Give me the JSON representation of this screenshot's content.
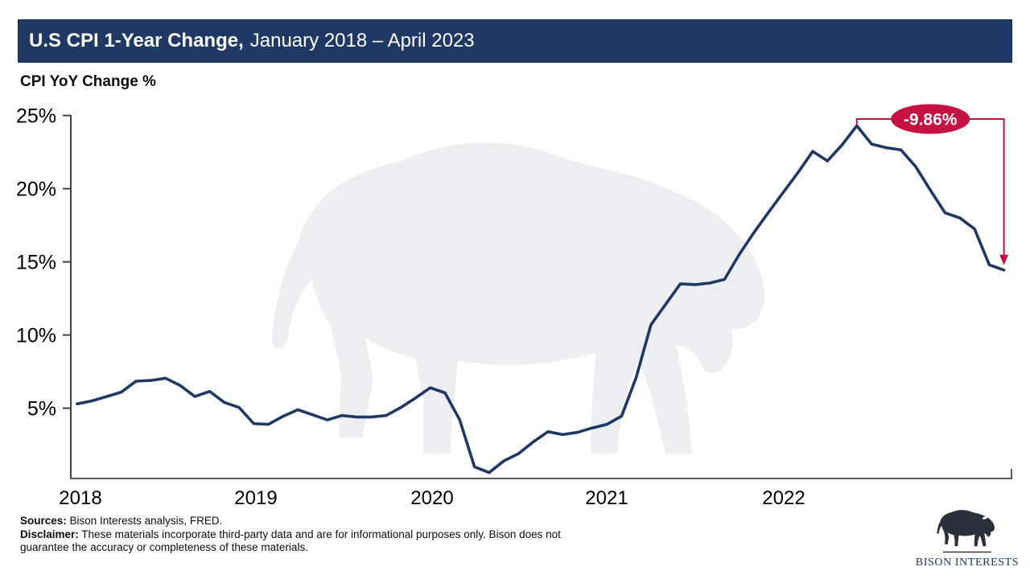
{
  "header": {
    "title_bold": "U.S CPI 1-Year Change,",
    "title_rest": "January 2018 – April 2023",
    "axis_title": "CPI YoY Change %"
  },
  "chart_data": {
    "type": "line",
    "title": "U.S CPI 1-Year Change, January 2018 – April 2023",
    "ylabel": "CPI YoY Change %",
    "xlabel": "",
    "grid": false,
    "legend": "none",
    "ylim": [
      0.2,
      25.2
    ],
    "y_tick_labels": [
      "25%",
      "20%",
      "15%",
      "10%",
      "5%"
    ],
    "y_tick_values": [
      25,
      20,
      15,
      10,
      5
    ],
    "x_tick_labels": [
      "2018",
      "2019",
      "2020",
      "2021",
      "2022"
    ],
    "x": [
      "2018-01",
      "2018-02",
      "2018-03",
      "2018-04",
      "2018-05",
      "2018-06",
      "2018-07",
      "2018-08",
      "2018-09",
      "2018-10",
      "2018-11",
      "2018-12",
      "2019-01",
      "2019-02",
      "2019-03",
      "2019-04",
      "2019-05",
      "2019-06",
      "2019-07",
      "2019-08",
      "2019-09",
      "2019-10",
      "2019-11",
      "2019-12",
      "2020-01",
      "2020-02",
      "2020-03",
      "2020-04",
      "2020-05",
      "2020-06",
      "2020-07",
      "2020-08",
      "2020-09",
      "2020-10",
      "2020-11",
      "2020-12",
      "2021-01",
      "2021-02",
      "2021-03",
      "2021-04",
      "2021-05",
      "2021-06",
      "2021-07",
      "2021-08",
      "2021-09",
      "2021-10",
      "2021-11",
      "2021-12",
      "2022-01",
      "2022-02",
      "2022-03",
      "2022-04",
      "2022-05",
      "2022-06",
      "2022-07",
      "2022-08",
      "2022-09",
      "2022-10",
      "2022-11",
      "2022-12",
      "2023-01",
      "2023-02",
      "2023-03",
      "2023-04"
    ],
    "series": [
      {
        "name": "CPI YoY Change %",
        "color": "#203864",
        "values": [
          5.3,
          5.5,
          5.8,
          6.1,
          6.85,
          6.9,
          7.05,
          6.55,
          5.8,
          6.15,
          5.4,
          5.05,
          3.95,
          3.9,
          4.45,
          4.9,
          4.55,
          4.2,
          4.5,
          4.4,
          4.4,
          4.5,
          5.05,
          5.7,
          6.4,
          6.05,
          4.2,
          1.0,
          0.6,
          1.4,
          1.9,
          2.7,
          3.4,
          3.2,
          3.35,
          3.65,
          3.9,
          4.45,
          7.1,
          10.7,
          12.1,
          13.5,
          13.45,
          13.55,
          13.8,
          15.5,
          17.0,
          18.4,
          19.75,
          21.1,
          22.55,
          21.9,
          23.0,
          24.3,
          23.05,
          22.8,
          22.65,
          21.5,
          19.9,
          18.35,
          18.0,
          17.25,
          14.8,
          14.44
        ]
      }
    ],
    "annotation": {
      "label": "-9.86%",
      "color": "#c61243",
      "from": {
        "x": "2022-06",
        "x_index": 53,
        "value": 24.3
      },
      "to": {
        "x": "2023-04",
        "x_index": 63,
        "value": 14.44
      }
    }
  },
  "footer": {
    "sources_label": "Sources:",
    "sources_text": " Bison Interests analysis, FRED.",
    "disclaimer_label": "Disclaimer:",
    "disclaimer_line1": " These materials incorporate third-party data and are for informational purposes only. Bison does not",
    "disclaimer_line2": "guarantee the accuracy or completeness of these materials."
  },
  "logo": {
    "name": "BISON INTERESTS"
  },
  "colors": {
    "title_bar_bg": "#1f3864",
    "line": "#203864",
    "annotation_red": "#c61243",
    "watermark": "#eceef2",
    "axis": "#404040",
    "logo_bison": "#2b2f3a",
    "logo_text": "#1f3864"
  }
}
